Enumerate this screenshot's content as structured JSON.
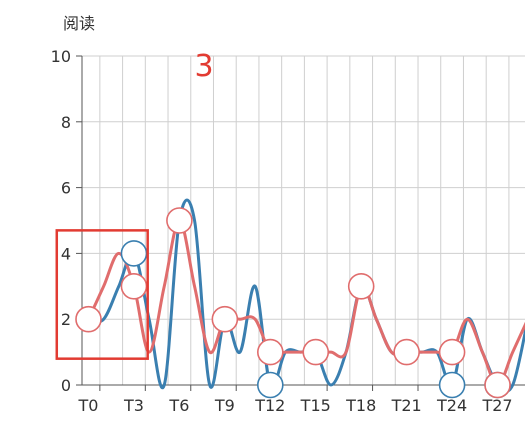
{
  "chart_data": {
    "type": "line",
    "ylabel": "阅读",
    "ylim": [
      0,
      10
    ],
    "y_ticks": [
      0,
      2,
      4,
      6,
      8,
      10
    ],
    "x_range": [
      0,
      29
    ],
    "x_tick_labels": [
      "T0",
      "T3",
      "T6",
      "T9",
      "T12",
      "T15",
      "T18",
      "T21",
      "T24",
      "T27"
    ],
    "x_tick_positions": [
      0,
      3,
      6,
      9,
      12,
      15,
      18,
      21,
      24,
      27
    ],
    "grid": true,
    "smooth": true,
    "series": [
      {
        "color": "#3a7fb0",
        "x": [
          0,
          1,
          2,
          3,
          4,
          5,
          6,
          7,
          8,
          9,
          10,
          11,
          12,
          13,
          14,
          15,
          16,
          17,
          18,
          19,
          20,
          21,
          22,
          23,
          24,
          25,
          26,
          27,
          28,
          29
        ],
        "values": [
          2,
          2,
          3,
          4,
          2,
          0,
          5,
          5,
          0,
          2,
          1,
          3,
          0,
          1,
          1,
          1,
          0,
          1,
          3,
          2,
          1,
          1,
          1,
          1,
          0,
          2,
          1,
          0,
          0,
          2
        ],
        "highlighted_points": [
          3,
          12,
          24,
          27
        ]
      },
      {
        "color": "#e06d6d",
        "x": [
          0,
          1,
          2,
          3,
          4,
          5,
          6,
          7,
          8,
          9,
          10,
          11,
          12,
          13,
          14,
          15,
          16,
          17,
          18,
          19,
          20,
          21,
          22,
          23,
          24,
          25,
          26,
          27,
          28,
          29
        ],
        "values": [
          2,
          3,
          4,
          3,
          1,
          3,
          5,
          3,
          1,
          2,
          2,
          2,
          1,
          1,
          1,
          1,
          1,
          1,
          3,
          2,
          1,
          1,
          1,
          1,
          1,
          2,
          1,
          0,
          1,
          2
        ],
        "highlighted_points": [
          0,
          3,
          6,
          9,
          12,
          15,
          18,
          21,
          24,
          27
        ]
      }
    ],
    "annotation": {
      "text": "3",
      "color": "#e23b32",
      "box_x_range": [
        -1.5,
        4.5
      ],
      "box_y_range": [
        0.8,
        4.7
      ]
    }
  }
}
